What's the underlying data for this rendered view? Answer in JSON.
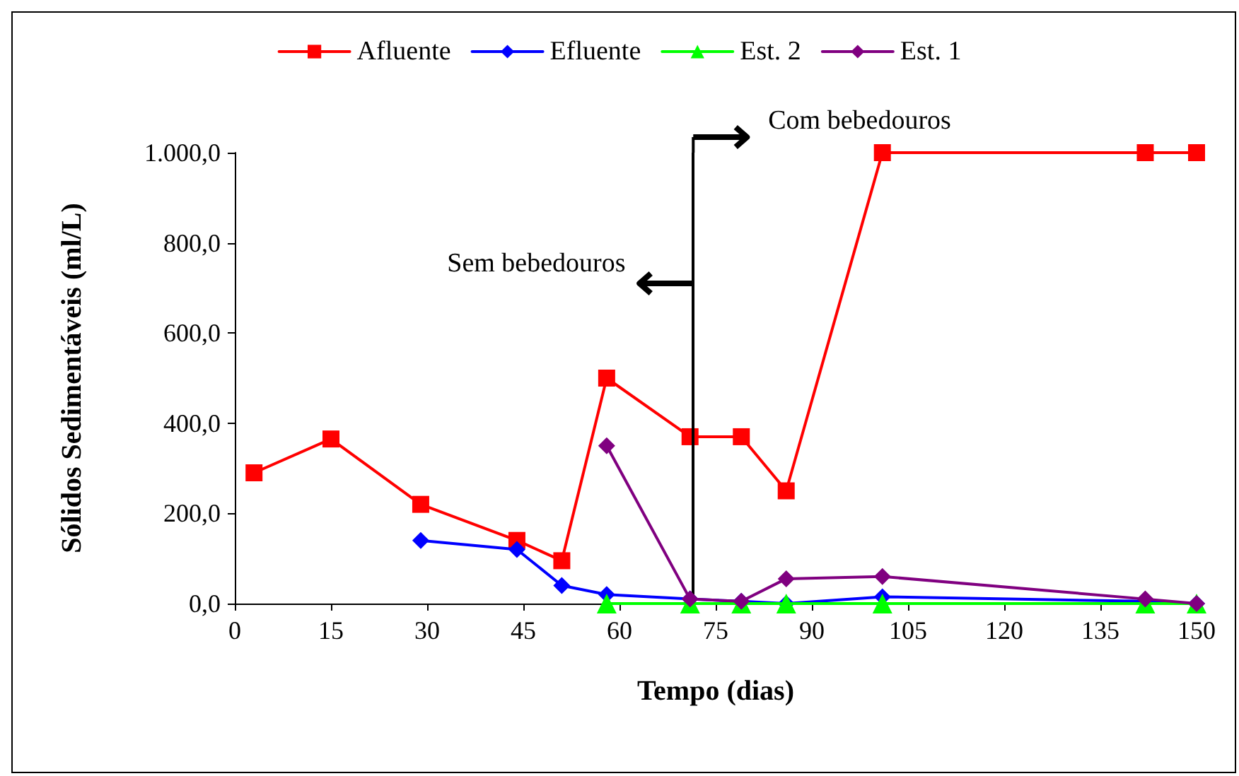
{
  "chart_data": {
    "type": "line",
    "xlabel": "Tempo (dias)",
    "ylabel": "Sólidos Sedimentáveis (ml/L)",
    "xlim": [
      0,
      150
    ],
    "xticks": [
      0,
      15,
      30,
      45,
      60,
      75,
      90,
      105,
      120,
      135,
      150
    ],
    "ylim": [
      0,
      1000
    ],
    "yticks": [
      {
        "value": 0,
        "label": "0,0"
      },
      {
        "value": 200,
        "label": "200,0"
      },
      {
        "value": 400,
        "label": "400,0"
      },
      {
        "value": 600,
        "label": "600,0"
      },
      {
        "value": 800,
        "label": "800,0"
      },
      {
        "value": 1000,
        "label": "1.000,0"
      }
    ],
    "grid": false,
    "legend": "top",
    "line_style": "solid",
    "series": [
      {
        "name": "Afluente",
        "color": "#ff0000",
        "marker": "square",
        "x": [
          3,
          15,
          29,
          44,
          51,
          58,
          71,
          79,
          86,
          101,
          142,
          150
        ],
        "values": [
          290,
          365,
          220,
          140,
          95,
          500,
          370,
          370,
          250,
          1000,
          1000,
          1000
        ]
      },
      {
        "name": "Efluente",
        "color": "#0000ff",
        "marker": "diamond",
        "x": [
          29,
          44,
          51,
          58,
          71,
          79,
          86,
          101,
          142,
          150
        ],
        "values": [
          140,
          120,
          40,
          20,
          10,
          5,
          0,
          15,
          5,
          0
        ]
      },
      {
        "name": "Est. 2",
        "color": "#00ff00",
        "marker": "triangle",
        "x": [
          58,
          71,
          79,
          86,
          101,
          142,
          150
        ],
        "values": [
          0,
          0,
          0,
          0,
          0,
          0,
          0
        ]
      },
      {
        "name": "Est. 1",
        "color": "#800080",
        "marker": "diamond",
        "x": [
          58,
          71,
          79,
          86,
          101,
          142,
          150
        ],
        "values": [
          350,
          10,
          5,
          55,
          60,
          10,
          0
        ]
      }
    ],
    "ref_lines": [
      {
        "axis": "x",
        "value": 71.5,
        "color": "#000000",
        "line_style": "solid"
      }
    ],
    "annotations": [
      "Sem bebedouros",
      "Com bebedouros"
    ]
  }
}
